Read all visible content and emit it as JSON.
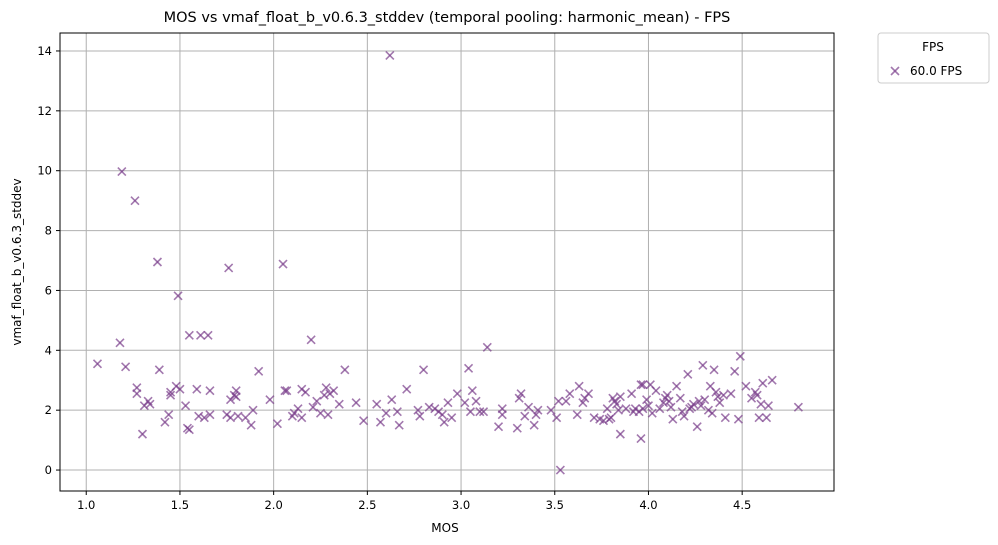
{
  "chart_data": {
    "type": "scatter",
    "title": "MOS vs vmaf_float_b_v0.6.3_stddev (temporal pooling: harmonic_mean) - FPS",
    "xlabel": "MOS",
    "ylabel": "vmaf_float_b_v0.6.3_stddev",
    "xlim": [
      0.86,
      4.99
    ],
    "ylim": [
      -0.7,
      14.6
    ],
    "xticks": [
      1.0,
      1.5,
      2.0,
      2.5,
      3.0,
      3.5,
      4.0,
      4.5
    ],
    "xtick_labels": [
      "1.0",
      "1.5",
      "2.0",
      "2.5",
      "3.0",
      "3.5",
      "4.0",
      "4.5"
    ],
    "yticks": [
      0,
      2,
      4,
      6,
      8,
      10,
      12,
      14
    ],
    "ytick_labels": [
      "0",
      "2",
      "4",
      "6",
      "8",
      "10",
      "12",
      "14"
    ],
    "grid": true,
    "legend": {
      "title": "FPS",
      "placement": "outside-top-right"
    },
    "colors": {
      "series": "#7b3f8c"
    },
    "series": [
      {
        "name": "60.0 FPS",
        "marker": "x",
        "points": [
          [
            1.06,
            3.55
          ],
          [
            1.18,
            4.25
          ],
          [
            1.19,
            9.97
          ],
          [
            1.21,
            3.45
          ],
          [
            1.26,
            9.0
          ],
          [
            1.27,
            2.75
          ],
          [
            1.27,
            2.55
          ],
          [
            1.3,
            1.2
          ],
          [
            1.31,
            2.15
          ],
          [
            1.33,
            2.3
          ],
          [
            1.34,
            2.2
          ],
          [
            1.38,
            6.95
          ],
          [
            1.39,
            3.35
          ],
          [
            1.42,
            1.6
          ],
          [
            1.44,
            1.85
          ],
          [
            1.45,
            2.6
          ],
          [
            1.45,
            2.5
          ],
          [
            1.48,
            2.8
          ],
          [
            1.49,
            5.82
          ],
          [
            1.5,
            2.7
          ],
          [
            1.53,
            2.15
          ],
          [
            1.54,
            1.4
          ],
          [
            1.55,
            1.35
          ],
          [
            1.55,
            4.5
          ],
          [
            1.59,
            2.7
          ],
          [
            1.6,
            1.8
          ],
          [
            1.61,
            4.5
          ],
          [
            1.63,
            1.75
          ],
          [
            1.65,
            4.5
          ],
          [
            1.66,
            2.65
          ],
          [
            1.66,
            1.85
          ],
          [
            1.75,
            1.85
          ],
          [
            1.76,
            6.75
          ],
          [
            1.77,
            2.35
          ],
          [
            1.77,
            1.75
          ],
          [
            1.79,
            2.5
          ],
          [
            1.8,
            2.45
          ],
          [
            1.8,
            2.65
          ],
          [
            1.81,
            1.8
          ],
          [
            1.85,
            1.75
          ],
          [
            1.88,
            1.5
          ],
          [
            1.89,
            2.0
          ],
          [
            1.92,
            3.3
          ],
          [
            1.98,
            2.35
          ],
          [
            2.02,
            1.55
          ],
          [
            2.05,
            6.88
          ],
          [
            2.06,
            2.65
          ],
          [
            2.07,
            2.65
          ],
          [
            2.1,
            1.8
          ],
          [
            2.11,
            1.9
          ],
          [
            2.13,
            2.05
          ],
          [
            2.15,
            1.75
          ],
          [
            2.15,
            2.7
          ],
          [
            2.17,
            2.6
          ],
          [
            2.2,
            4.35
          ],
          [
            2.21,
            2.1
          ],
          [
            2.23,
            2.3
          ],
          [
            2.25,
            1.9
          ],
          [
            2.27,
            2.5
          ],
          [
            2.28,
            2.75
          ],
          [
            2.29,
            1.85
          ],
          [
            2.3,
            2.55
          ],
          [
            2.32,
            2.65
          ],
          [
            2.35,
            2.2
          ],
          [
            2.38,
            3.35
          ],
          [
            2.44,
            2.25
          ],
          [
            2.48,
            1.65
          ],
          [
            2.55,
            2.2
          ],
          [
            2.57,
            1.6
          ],
          [
            2.6,
            1.9
          ],
          [
            2.62,
            13.85
          ],
          [
            2.63,
            2.35
          ],
          [
            2.66,
            1.95
          ],
          [
            2.67,
            1.5
          ],
          [
            2.71,
            2.7
          ],
          [
            2.77,
            2.0
          ],
          [
            2.78,
            1.8
          ],
          [
            2.8,
            3.35
          ],
          [
            2.83,
            2.1
          ],
          [
            2.86,
            2.05
          ],
          [
            2.88,
            1.95
          ],
          [
            2.9,
            1.85
          ],
          [
            2.91,
            1.6
          ],
          [
            2.93,
            2.25
          ],
          [
            2.95,
            1.75
          ],
          [
            2.98,
            2.55
          ],
          [
            3.02,
            2.25
          ],
          [
            3.04,
            3.4
          ],
          [
            3.05,
            1.95
          ],
          [
            3.06,
            2.65
          ],
          [
            3.08,
            2.3
          ],
          [
            3.1,
            1.95
          ],
          [
            3.12,
            1.95
          ],
          [
            3.14,
            4.1
          ],
          [
            3.2,
            1.45
          ],
          [
            3.22,
            1.85
          ],
          [
            3.22,
            2.05
          ],
          [
            3.3,
            1.4
          ],
          [
            3.31,
            2.4
          ],
          [
            3.32,
            2.55
          ],
          [
            3.34,
            1.8
          ],
          [
            3.36,
            2.1
          ],
          [
            3.39,
            1.5
          ],
          [
            3.4,
            1.85
          ],
          [
            3.41,
            2.0
          ],
          [
            3.48,
            2.0
          ],
          [
            3.51,
            1.75
          ],
          [
            3.52,
            2.3
          ],
          [
            3.53,
            0.0
          ],
          [
            3.56,
            2.3
          ],
          [
            3.58,
            2.55
          ],
          [
            3.62,
            1.85
          ],
          [
            3.63,
            2.8
          ],
          [
            3.65,
            2.25
          ],
          [
            3.66,
            2.4
          ],
          [
            3.68,
            2.55
          ],
          [
            3.71,
            1.75
          ],
          [
            3.74,
            1.7
          ],
          [
            3.76,
            1.65
          ],
          [
            3.78,
            2.05
          ],
          [
            3.79,
            1.7
          ],
          [
            3.8,
            1.75
          ],
          [
            3.81,
            2.4
          ],
          [
            3.82,
            2.3
          ],
          [
            3.83,
            2.2
          ],
          [
            3.84,
            2.0
          ],
          [
            3.85,
            1.2
          ],
          [
            3.85,
            2.45
          ],
          [
            3.88,
            2.05
          ],
          [
            3.91,
            2.55
          ],
          [
            3.92,
            1.95
          ],
          [
            3.93,
            2.05
          ],
          [
            3.95,
            1.95
          ],
          [
            3.96,
            1.05
          ],
          [
            3.97,
            2.05
          ],
          [
            3.96,
            2.85
          ],
          [
            3.97,
            2.85
          ],
          [
            3.99,
            2.35
          ],
          [
            4.0,
            2.15
          ],
          [
            4.01,
            2.85
          ],
          [
            4.02,
            1.9
          ],
          [
            4.04,
            2.65
          ],
          [
            4.06,
            2.05
          ],
          [
            4.08,
            2.25
          ],
          [
            4.09,
            2.4
          ],
          [
            4.1,
            2.5
          ],
          [
            4.11,
            2.3
          ],
          [
            4.12,
            2.1
          ],
          [
            4.13,
            1.7
          ],
          [
            4.15,
            2.8
          ],
          [
            4.17,
            2.4
          ],
          [
            4.18,
            1.95
          ],
          [
            4.19,
            1.8
          ],
          [
            4.21,
            3.2
          ],
          [
            4.22,
            2.05
          ],
          [
            4.23,
            2.1
          ],
          [
            4.24,
            2.2
          ],
          [
            4.26,
            1.45
          ],
          [
            4.27,
            2.3
          ],
          [
            4.28,
            2.15
          ],
          [
            4.29,
            3.5
          ],
          [
            4.3,
            2.35
          ],
          [
            4.32,
            2.0
          ],
          [
            4.33,
            2.8
          ],
          [
            4.34,
            1.9
          ],
          [
            4.35,
            3.35
          ],
          [
            4.36,
            2.6
          ],
          [
            4.37,
            2.45
          ],
          [
            4.38,
            2.25
          ],
          [
            4.4,
            2.5
          ],
          [
            4.41,
            1.75
          ],
          [
            4.44,
            2.55
          ],
          [
            4.46,
            3.3
          ],
          [
            4.48,
            1.7
          ],
          [
            4.49,
            3.8
          ],
          [
            4.52,
            2.8
          ],
          [
            4.55,
            2.4
          ],
          [
            4.57,
            2.6
          ],
          [
            4.58,
            2.5
          ],
          [
            4.59,
            1.75
          ],
          [
            4.6,
            2.2
          ],
          [
            4.61,
            2.9
          ],
          [
            4.63,
            1.75
          ],
          [
            4.64,
            2.15
          ],
          [
            4.66,
            3.0
          ],
          [
            4.8,
            2.1
          ]
        ]
      }
    ]
  }
}
